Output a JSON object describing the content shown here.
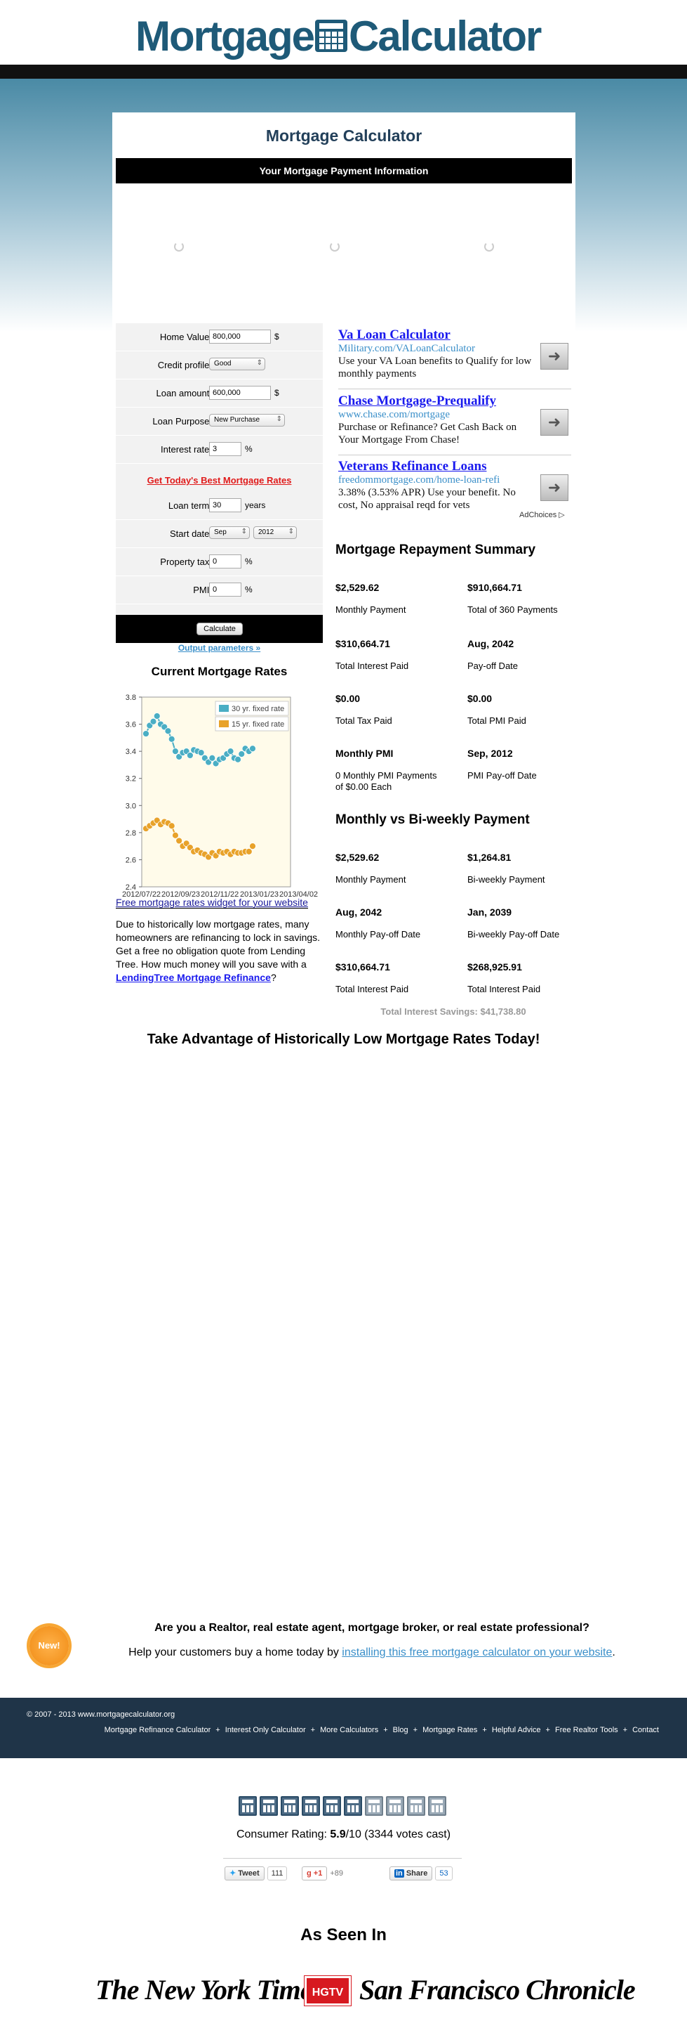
{
  "header": {
    "logo_left": "Mortgage",
    "logo_right": "Calculator"
  },
  "panel": {
    "title": "Mortgage Calculator",
    "bar_title": "Your Mortgage Payment Information"
  },
  "form": {
    "home_value_label": "Home Value:",
    "home_value": "800,000",
    "dollar": "$",
    "credit_label": "Credit profile:",
    "credit_value": "Good",
    "loan_amount_label": "Loan amount:",
    "loan_amount": "600,000",
    "loan_purpose_label": "Loan Purpose:",
    "loan_purpose_value": "New Purchase",
    "interest_label": "Interest rate:",
    "interest_value": "3",
    "percent": "%",
    "best_rates_link": "Get Today's Best Mortgage Rates",
    "loan_term_label": "Loan term:",
    "loan_term_value": "30",
    "years": "years",
    "start_date_label": "Start date:",
    "start_month": "Sep",
    "start_year": "2012",
    "property_tax_label": "Property tax:",
    "property_tax_value": "0",
    "pmi_label": "PMI:",
    "pmi_value": "0",
    "calculate": "Calculate",
    "output_link": "Output parameters »"
  },
  "rates": {
    "title": "Current Mortgage Rates",
    "widget_link": "Free mortgage rates widget for your website",
    "promo_text": "Due to historically low mortgage rates, many homeowners are refinancing to lock in savings. Get a free no obligation quote from Lending Tree. How much money will you save with a",
    "promo_link": "LendingTree Mortgage Refinance",
    "promo_end": "?"
  },
  "chart_data": {
    "type": "line",
    "x_ticks": [
      "2012/07/2",
      "2012/09/2",
      "2012/11/2",
      "2013/01/2",
      "2013/04/02"
    ],
    "x_tick_labels_full": [
      "2012/07/22",
      "2012/09/23",
      "2012/11/22",
      "2013/01/23",
      "2013/04/02"
    ],
    "ylim": [
      2.4,
      3.8
    ],
    "y_ticks": [
      2.4,
      2.6,
      2.8,
      3.0,
      3.2,
      3.4,
      3.6,
      3.8
    ],
    "legend_position": "top-right",
    "series": [
      {
        "name": "30 yr. fixed rate",
        "color": "#4aaec4",
        "values": [
          3.53,
          3.59,
          3.62,
          3.66,
          3.6,
          3.58,
          3.55,
          3.49,
          3.4,
          3.36,
          3.39,
          3.4,
          3.37,
          3.41,
          3.4,
          3.39,
          3.35,
          3.32,
          3.35,
          3.31,
          3.34,
          3.35,
          3.38,
          3.4,
          3.35,
          3.34,
          3.38,
          3.42,
          3.4,
          3.42
        ]
      },
      {
        "name": "15 yr. fixed rate",
        "color": "#e8a22a",
        "values": [
          2.83,
          2.85,
          2.87,
          2.89,
          2.86,
          2.88,
          2.87,
          2.85,
          2.78,
          2.74,
          2.7,
          2.72,
          2.69,
          2.66,
          2.67,
          2.65,
          2.64,
          2.62,
          2.65,
          2.63,
          2.66,
          2.65,
          2.66,
          2.64,
          2.66,
          2.65,
          2.65,
          2.66,
          2.66,
          2.7
        ]
      }
    ]
  },
  "ads": [
    {
      "title": "Va Loan Calculator",
      "url": "Military.com/VALoanCalculator",
      "desc": "Use your VA Loan benefits to Qualify for low monthly payments"
    },
    {
      "title": "Chase Mortgage-Prequalify",
      "url": "www.chase.com/mortgage",
      "desc": "Purchase or Refinance? Get Cash Back on Your Mortgage From Chase!"
    },
    {
      "title": "Veterans Refinance Loans",
      "url": "freedommortgage.com/home-loan-refi",
      "desc": "3.38% (3.53% APR) Use your benefit. No cost, No appraisal reqd for vets"
    }
  ],
  "adchoices": "AdChoices",
  "summary": {
    "title": "Mortgage Repayment Summary",
    "items": [
      {
        "value": "$2,529.62",
        "label": "Monthly Payment"
      },
      {
        "value": "$910,664.71",
        "label": "Total of 360 Payments"
      },
      {
        "value": "$310,664.71",
        "label": "Total Interest Paid"
      },
      {
        "value": "Aug, 2042",
        "label": "Pay-off Date"
      },
      {
        "value": "$0.00",
        "label": "Total Tax Paid"
      },
      {
        "value": "$0.00",
        "label": "Total PMI Paid"
      },
      {
        "value": "Monthly PMI",
        "label": "0 Monthly PMI Payments of $0.00 Each"
      },
      {
        "value": "Sep, 2012",
        "label": "PMI Pay-off Date"
      }
    ]
  },
  "biweekly": {
    "title": "Monthly vs Bi-weekly Payment",
    "items": [
      {
        "value": "$2,529.62",
        "label": "Monthly Payment"
      },
      {
        "value": "$1,264.81",
        "label": "Bi-weekly Payment"
      },
      {
        "value": "Aug, 2042",
        "label": "Monthly Pay-off Date"
      },
      {
        "value": "Jan, 2039",
        "label": "Bi-weekly Pay-off Date"
      },
      {
        "value": "$310,664.71",
        "label": "Total Interest Paid"
      },
      {
        "value": "$268,925.91",
        "label": "Total Interest Paid"
      }
    ],
    "savings": "Total Interest Savings: $41,738.80"
  },
  "take_advantage": "Take Advantage of Historically Low Mortgage Rates Today!",
  "realtor": {
    "badge": "New!",
    "question": "Are you a Realtor, real estate agent, mortgage broker, or real estate professional?",
    "help_text": "Help your customers buy a home today by",
    "help_link": "installing this free mortgage calculator on your website",
    "help_end": "."
  },
  "footer": {
    "copyright": "© 2007 - 2013 www.mortgagecalculator.org",
    "nav": [
      "Mortgage Refinance Calculator",
      "Interest Only Calculator",
      "More Calculators",
      "Blog",
      "Mortgage Rates",
      "Helpful Advice",
      "Free Realtor Tools",
      "Contact"
    ],
    "sep": "+"
  },
  "rating": {
    "prefix": "Consumer Rating: ",
    "score": "5.9",
    "suffix": "/10 (3344 votes cast)",
    "score_value": 5.9,
    "max": 10
  },
  "social": {
    "tweet": "Tweet",
    "tweet_count": "111",
    "gplus": "+1",
    "gplus_count": "+89",
    "share": "Share",
    "share_count": "53"
  },
  "seen_in": {
    "title": "As Seen In",
    "nyt": "The New York Times",
    "hgtv": "HGTV",
    "sfc": "San Francisco Chronicle"
  }
}
